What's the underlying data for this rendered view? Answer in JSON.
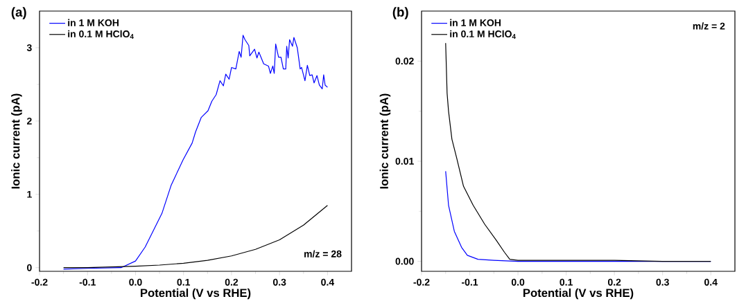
{
  "chart_data": [
    {
      "type": "line",
      "title": "(a)",
      "xlabel": "Potential (V vs RHE)",
      "ylabel": "Ionic current (pA)",
      "annotations": [
        "m/z = 28"
      ],
      "xlim": [
        -0.2,
        0.45
      ],
      "ylim": [
        -0.05,
        3.5
      ],
      "xticks": [
        {
          "value": -0.2,
          "label": "-0.2"
        },
        {
          "value": -0.1,
          "label": "-0.1"
        },
        {
          "value": 0,
          "label": "0.0"
        },
        0.1,
        0.2,
        0.3,
        0.4
      ],
      "yticks": [
        0,
        1,
        2,
        3
      ],
      "grid": false,
      "legend": "top left",
      "marker": "none",
      "line_style": "solid",
      "series": [
        {
          "name": "in 1 M KOH",
          "color": "#0000ff",
          "x": [
            -0.15,
            -0.1,
            -0.03,
            0.0,
            0.02,
            0.036,
            0.055,
            0.074,
            0.099,
            0.118,
            0.125,
            0.137,
            0.151,
            0.159,
            0.168,
            0.176,
            0.183,
            0.188,
            0.195,
            0.2,
            0.209,
            0.216,
            0.22,
            0.224,
            0.228,
            0.236,
            0.238,
            0.248,
            0.253,
            0.257,
            0.267,
            0.277,
            0.281,
            0.286,
            0.289,
            0.292,
            0.298,
            0.303,
            0.308,
            0.313,
            0.315,
            0.318,
            0.321,
            0.327,
            0.33,
            0.337,
            0.343,
            0.346,
            0.353,
            0.358,
            0.363,
            0.368,
            0.372,
            0.378,
            0.383,
            0.389,
            0.392,
            0.395,
            0.4
          ],
          "values": [
            -0.02,
            -0.01,
            0.0,
            0.09,
            0.28,
            0.49,
            0.74,
            1.12,
            1.47,
            1.7,
            1.85,
            2.05,
            2.14,
            2.27,
            2.36,
            2.55,
            2.48,
            2.64,
            2.57,
            2.73,
            2.71,
            2.95,
            2.87,
            3.17,
            3.11,
            3.03,
            2.89,
            2.98,
            2.86,
            2.94,
            2.78,
            2.75,
            2.65,
            2.75,
            2.65,
            3.05,
            2.87,
            2.87,
            2.71,
            2.71,
            3.02,
            2.86,
            3.11,
            3.02,
            3.14,
            3.0,
            2.71,
            2.73,
            2.55,
            2.76,
            2.62,
            2.63,
            2.52,
            2.62,
            2.49,
            2.44,
            2.63,
            2.49,
            2.46
          ]
        },
        {
          "name": "in 0.1 M HClO$_{4}$",
          "color": "#000000",
          "x": [
            -0.15,
            -0.1,
            -0.05,
            0.0,
            0.05,
            0.1,
            0.15,
            0.2,
            0.25,
            0.3,
            0.35,
            0.4
          ],
          "values": [
            0.0,
            0.0,
            0.01,
            0.02,
            0.035,
            0.06,
            0.1,
            0.16,
            0.25,
            0.38,
            0.58,
            0.85
          ]
        }
      ]
    },
    {
      "type": "line",
      "title": "(b)",
      "xlabel": "Potential (V vs RHE)",
      "ylabel": "Ionic current (pA)",
      "annotations": [
        "m/z = 2"
      ],
      "xlim": [
        -0.2,
        0.45
      ],
      "ylim": [
        -0.001,
        0.025
      ],
      "xticks": [
        {
          "value": -0.2,
          "label": "-0.2"
        },
        {
          "value": -0.1,
          "label": "-0.1"
        },
        {
          "value": 0,
          "label": "0.0"
        },
        0.1,
        0.2,
        0.3,
        0.4
      ],
      "yticks": [
        {
          "value": 0,
          "label": "0.00"
        },
        0.01,
        0.02
      ],
      "grid": false,
      "legend": "top left",
      "marker": "none",
      "line_style": "solid",
      "series": [
        {
          "name": "in 1 M KOH",
          "color": "#0000ff",
          "x": [
            -0.15,
            -0.144,
            -0.132,
            -0.117,
            -0.105,
            -0.083,
            -0.05,
            0.0,
            0.1,
            0.2,
            0.3,
            0.4
          ],
          "values": [
            0.009,
            0.0056,
            0.003,
            0.0014,
            0.0006,
            0.0002,
            0.0001,
            0.0,
            0.0,
            0.0,
            0.0,
            0.0
          ]
        },
        {
          "name": "in 0.1 M HClO$_{4}$",
          "color": "#000000",
          "x": [
            -0.15,
            -0.147,
            -0.144,
            -0.137,
            -0.127,
            -0.113,
            -0.093,
            -0.069,
            -0.045,
            -0.028,
            -0.017,
            0.0,
            0.1,
            0.2,
            0.3,
            0.4
          ],
          "values": [
            0.0218,
            0.0168,
            0.015,
            0.0122,
            0.0103,
            0.0075,
            0.0056,
            0.0037,
            0.0021,
            0.0009,
            0.0002,
            0.0001,
            0.0001,
            0.0001,
            0.0,
            0.0
          ]
        }
      ]
    }
  ]
}
